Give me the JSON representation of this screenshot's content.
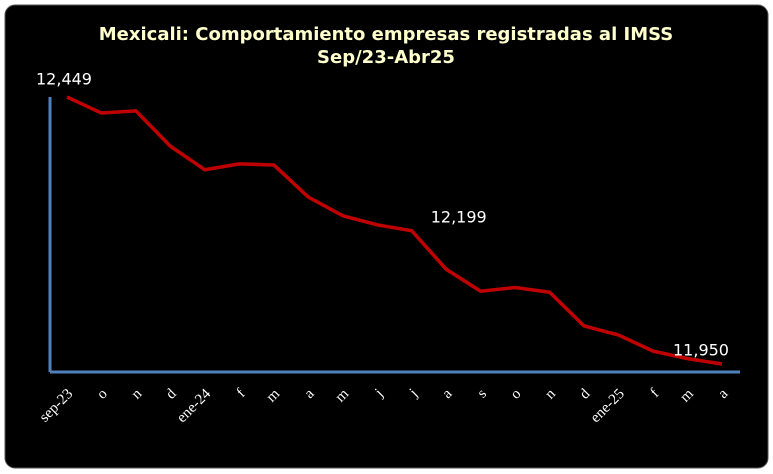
{
  "chart_data": {
    "type": "line",
    "title": "Mexicali: Comportamiento empresas registradas al IMSS",
    "subtitle": "Sep/23-Abr25",
    "categories": [
      "sep-23",
      "o",
      "n",
      "d",
      "ene-24",
      "f",
      "m",
      "a",
      "m",
      "j",
      "j",
      "a",
      "s",
      "o",
      "n",
      "d",
      "ene-25",
      "f",
      "m",
      "a"
    ],
    "values": [
      12449,
      12419,
      12423,
      12357,
      12313,
      12324,
      12322,
      12262,
      12227,
      12210,
      12199,
      12127,
      12086,
      12093,
      12084,
      12021,
      12004,
      11974,
      11960,
      11950
    ],
    "value_labels": [
      "12,449",
      null,
      null,
      null,
      null,
      null,
      null,
      null,
      null,
      null,
      "12,199",
      null,
      null,
      null,
      null,
      null,
      null,
      null,
      null,
      "11,950"
    ],
    "color": "#c00000",
    "ylim": [
      11935,
      12449
    ]
  }
}
